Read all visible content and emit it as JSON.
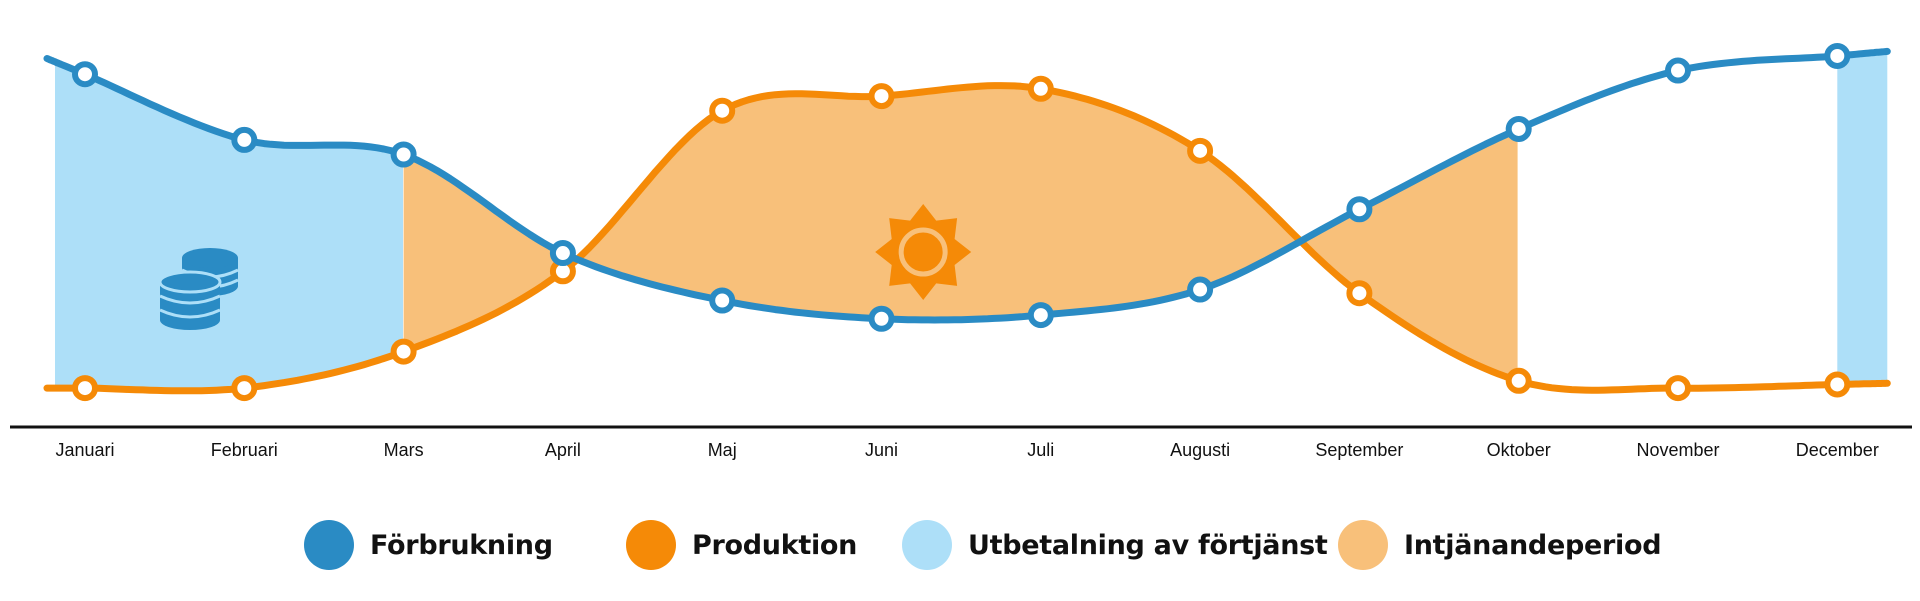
{
  "chart_data": {
    "type": "line",
    "categories": [
      "Januari",
      "Februari",
      "Mars",
      "April",
      "Maj",
      "Juni",
      "Juli",
      "Augusti",
      "September",
      "Oktober",
      "November",
      "December"
    ],
    "series": [
      {
        "name": "Förbrukning",
        "color": "#2a8bc4",
        "values": [
          0.92,
          0.74,
          0.7,
          0.43,
          0.3,
          0.25,
          0.26,
          0.33,
          0.55,
          0.77,
          0.93,
          0.97
        ]
      },
      {
        "name": "Produktion",
        "color": "#f58a07",
        "values": [
          0.06,
          0.06,
          0.16,
          0.38,
          0.82,
          0.86,
          0.88,
          0.71,
          0.32,
          0.08,
          0.06,
          0.07
        ]
      }
    ],
    "areas": [
      {
        "name": "Utbetalning av förtjänst",
        "color": "#addff8",
        "months": [
          "Januari",
          "Februari",
          "Mars",
          "December"
        ]
      },
      {
        "name": "Intjänandeperiod",
        "color": "#f8c07a",
        "months": [
          "Mars",
          "April",
          "Maj",
          "Juni",
          "Juli",
          "Augusti",
          "September",
          "Oktober"
        ]
      }
    ],
    "icons": [
      "coins-icon",
      "sun-icon"
    ],
    "legend_position": "bottom",
    "grid": false
  },
  "legend": [
    {
      "label": "Förbrukning",
      "color": "#2a8bc4"
    },
    {
      "label": "Produktion",
      "color": "#f58a07"
    },
    {
      "label": "Utbetalning av förtjänst",
      "color": "#addff8"
    },
    {
      "label": "Intjänandeperiod",
      "color": "#f8c07a"
    }
  ]
}
